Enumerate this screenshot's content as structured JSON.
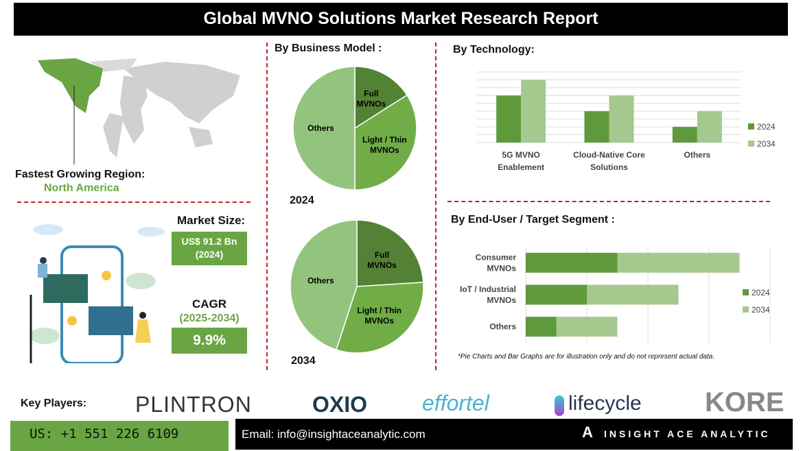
{
  "title": "Global MVNO Solutions Market Research Report",
  "region": {
    "label": "Fastest Growing Region:",
    "value": "North America"
  },
  "market": {
    "label": "Market Size:",
    "value": "US$ 91.2 Bn",
    "year": "(2024)"
  },
  "cagr": {
    "label": "CAGR",
    "period": "(2025-2034)",
    "value": "9.9%"
  },
  "colors": {
    "dark_green": "#5e9a3c",
    "light_green": "#a5c88e",
    "pie_dark": "#548235",
    "pie_mid": "#70ad47",
    "pie_light": "#93c47d",
    "divider": "#b22222"
  },
  "note": "*Pie Charts and Bar Graphs are for illustration only and do not represent actual data.",
  "footer": {
    "key_players_label": "Key Players:",
    "phone": "US: +1 551 226 6109",
    "email": "Email: info@insightaceanalytic.com",
    "brand": "INSIGHT ACE ANALYTIC",
    "players": [
      "PLINTRON",
      "OXIO",
      "effortel",
      "lifecycle",
      "KORE"
    ]
  },
  "chart_data": [
    {
      "type": "pie",
      "title": "By Business Model :",
      "label": "2024",
      "slices": [
        {
          "name": "Full MVNOs",
          "value": 16
        },
        {
          "name": "Light / Thin MVNOs",
          "value": 34
        },
        {
          "name": "Others",
          "value": 50
        }
      ]
    },
    {
      "type": "pie",
      "label": "2034",
      "slices": [
        {
          "name": "Full MVNOs",
          "value": 24
        },
        {
          "name": "Light / Thin MVNOs",
          "value": 31
        },
        {
          "name": "Others",
          "value": 45
        }
      ]
    },
    {
      "type": "bar",
      "title": "By Technology:",
      "categories": [
        "5G MVNO Enablement",
        "Cloud-Native Core Solutions",
        "Others"
      ],
      "categories_display": [
        [
          "5G MVNO",
          "Enablement"
        ],
        [
          "Cloud-Native Core",
          "Solutions"
        ],
        [
          "Others"
        ]
      ],
      "series": [
        {
          "name": "2024",
          "values": [
            6,
            4,
            2
          ]
        },
        {
          "name": "2034",
          "values": [
            8,
            6,
            4
          ]
        }
      ],
      "ylim": [
        0,
        9
      ],
      "grid": true,
      "legend": "right"
    },
    {
      "type": "bar",
      "orientation": "horizontal",
      "stacked": true,
      "title": "By End-User / Target Segment :",
      "categories": [
        "Consumer MVNOs",
        "IoT / Industrial MVNOs",
        "Others"
      ],
      "categories_display": [
        [
          "Consumer",
          "MVNOs"
        ],
        [
          "IoT / Industrial",
          "MVNOs"
        ],
        [
          "Others"
        ]
      ],
      "series": [
        {
          "name": "2024",
          "values": [
            1.5,
            1.0,
            0.5
          ]
        },
        {
          "name": "2034",
          "values": [
            2.0,
            1.5,
            1.0
          ]
        }
      ],
      "xlim": [
        0,
        4
      ],
      "grid": true,
      "legend": "right"
    }
  ]
}
